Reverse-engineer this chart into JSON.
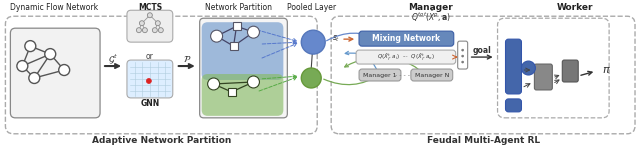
{
  "left_box_label": "Adaptive Network Partition",
  "right_box_label": "Feudal Multi-Agent RL",
  "section1_title": "Dynamic Flow Network",
  "section2_title1": "MCTS",
  "section2_title2": "GNN",
  "section3_title": "Network Partition",
  "section4_title": "Pooled Layer",
  "section5_title": "Manager",
  "section6_title": "Worker",
  "manager_formula": "$Q^{tot}(\\hat{X}^p, \\mathbf{a})$",
  "mixing_network_label": "Mixing Network",
  "manager1_label": "Manager 1",
  "managerN_label": "Manager N",
  "s_t_label": "$s_t$",
  "goal_label": "goal",
  "pi_label": "$\\pi$",
  "G_t_label": "$\\mathcal{G}^t$",
  "P_label": "$\\mathcal{P}$",
  "or_label": "or",
  "bg_color": "#ffffff"
}
